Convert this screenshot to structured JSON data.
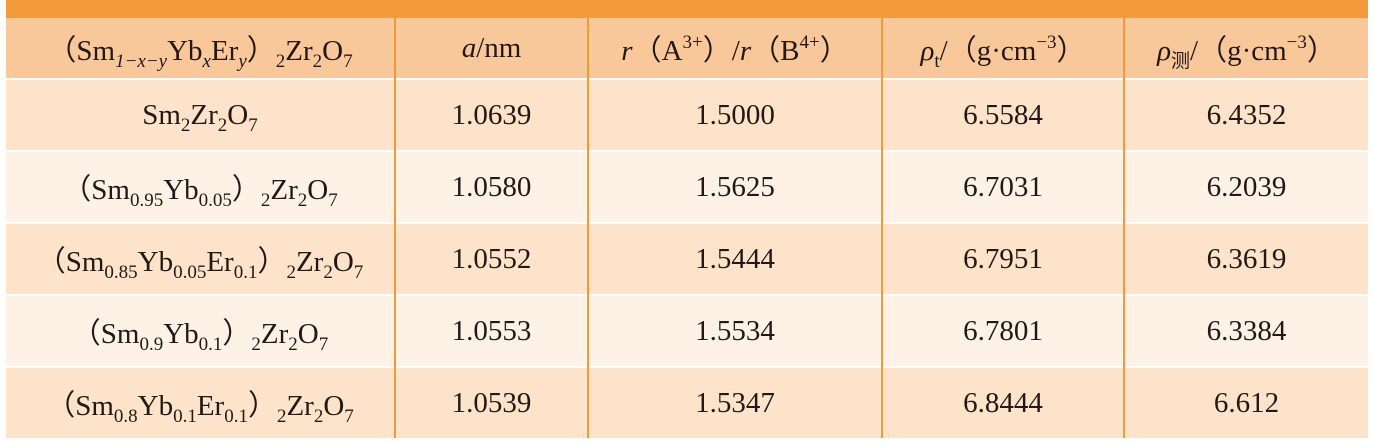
{
  "table": {
    "header": [
      [
        {
          "text": "（Sm"
        },
        {
          "text": "1−x−y",
          "pos": "sub",
          "italic": true
        },
        {
          "text": "Yb"
        },
        {
          "text": "x",
          "pos": "sub",
          "italic": true
        },
        {
          "text": "Er"
        },
        {
          "text": "y",
          "pos": "sub",
          "italic": true
        },
        {
          "text": "）"
        },
        {
          "text": "2",
          "pos": "sub"
        },
        {
          "text": "Zr"
        },
        {
          "text": "2",
          "pos": "sub"
        },
        {
          "text": "O"
        },
        {
          "text": "7",
          "pos": "sub"
        }
      ],
      [
        {
          "text": "a",
          "italic": true
        },
        {
          "text": "/nm"
        }
      ],
      [
        {
          "text": "r",
          "italic": true
        },
        {
          "text": "（A"
        },
        {
          "text": "3+",
          "pos": "sup"
        },
        {
          "text": "）/"
        },
        {
          "text": "r",
          "italic": true
        },
        {
          "text": "（B"
        },
        {
          "text": "4+",
          "pos": "sup"
        },
        {
          "text": "）"
        }
      ],
      [
        {
          "text": "ρ",
          "italic": true
        },
        {
          "text": "t",
          "pos": "sub"
        },
        {
          "text": "/（g·cm"
        },
        {
          "text": "−3",
          "pos": "sup"
        },
        {
          "text": "）"
        }
      ],
      [
        {
          "text": "ρ",
          "italic": true
        },
        {
          "text": "测",
          "pos": "sub"
        },
        {
          "text": "/（g·cm"
        },
        {
          "text": "−3",
          "pos": "sup"
        },
        {
          "text": "）"
        }
      ]
    ],
    "rows": [
      [
        [
          {
            "text": "Sm"
          },
          {
            "text": "2",
            "pos": "sub"
          },
          {
            "text": "Zr"
          },
          {
            "text": "2",
            "pos": "sub"
          },
          {
            "text": "O"
          },
          {
            "text": "7",
            "pos": "sub"
          }
        ],
        "1.0639",
        "1.5000",
        "6.5584",
        "6.4352"
      ],
      [
        [
          {
            "text": "（Sm"
          },
          {
            "text": "0.95",
            "pos": "sub"
          },
          {
            "text": "Yb"
          },
          {
            "text": "0.05",
            "pos": "sub"
          },
          {
            "text": "）"
          },
          {
            "text": "2",
            "pos": "sub"
          },
          {
            "text": "Zr"
          },
          {
            "text": "2",
            "pos": "sub"
          },
          {
            "text": "O"
          },
          {
            "text": "7",
            "pos": "sub"
          }
        ],
        "1.0580",
        "1.5625",
        "6.7031",
        "6.2039"
      ],
      [
        [
          {
            "text": "（Sm"
          },
          {
            "text": "0.85",
            "pos": "sub"
          },
          {
            "text": "Yb"
          },
          {
            "text": "0.05",
            "pos": "sub"
          },
          {
            "text": "Er"
          },
          {
            "text": "0.1",
            "pos": "sub"
          },
          {
            "text": "）"
          },
          {
            "text": "2",
            "pos": "sub"
          },
          {
            "text": "Zr"
          },
          {
            "text": "2",
            "pos": "sub"
          },
          {
            "text": "O"
          },
          {
            "text": "7",
            "pos": "sub"
          }
        ],
        "1.0552",
        "1.5444",
        "6.7951",
        "6.3619"
      ],
      [
        [
          {
            "text": "（Sm"
          },
          {
            "text": "0.9",
            "pos": "sub"
          },
          {
            "text": "Yb"
          },
          {
            "text": "0.1",
            "pos": "sub"
          },
          {
            "text": "）"
          },
          {
            "text": "2",
            "pos": "sub"
          },
          {
            "text": "Zr"
          },
          {
            "text": "2",
            "pos": "sub"
          },
          {
            "text": "O"
          },
          {
            "text": "7",
            "pos": "sub"
          }
        ],
        "1.0553",
        "1.5534",
        "6.7801",
        "6.3384"
      ],
      [
        [
          {
            "text": "（Sm"
          },
          {
            "text": "0.8",
            "pos": "sub"
          },
          {
            "text": "Yb"
          },
          {
            "text": "0.1",
            "pos": "sub"
          },
          {
            "text": "Er"
          },
          {
            "text": "0.1",
            "pos": "sub"
          },
          {
            "text": "）"
          },
          {
            "text": "2",
            "pos": "sub"
          },
          {
            "text": "Zr"
          },
          {
            "text": "2",
            "pos": "sub"
          },
          {
            "text": "O"
          },
          {
            "text": "7",
            "pos": "sub"
          }
        ],
        "1.0539",
        "1.5347",
        "6.8444",
        "6.612"
      ]
    ]
  }
}
